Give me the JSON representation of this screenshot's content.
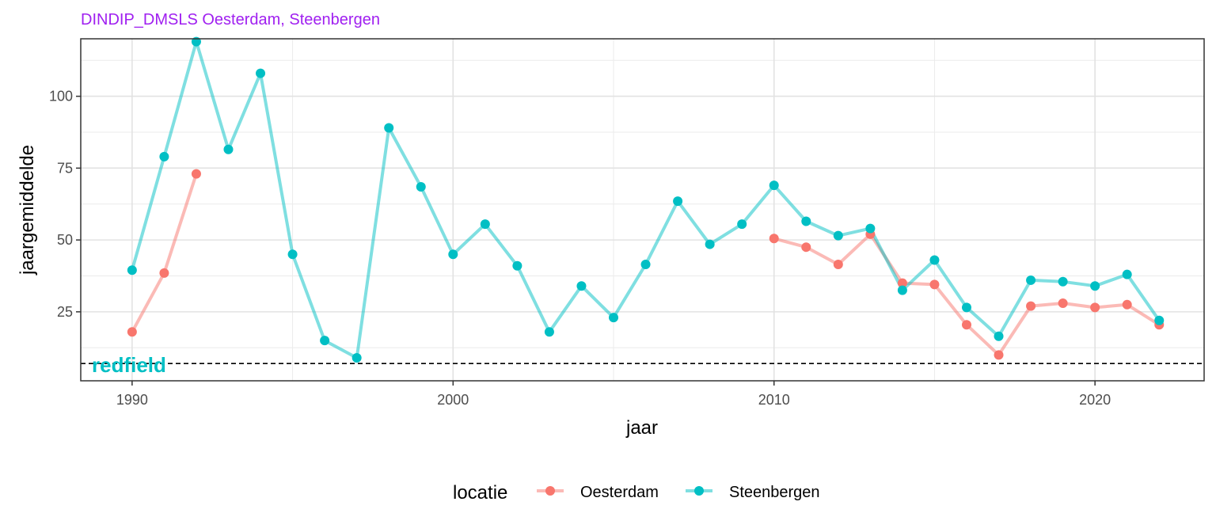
{
  "chart_data": {
    "type": "line",
    "title": "DINDIP_DMSLS Oesterdam, Steenbergen",
    "xlabel": "jaar",
    "ylabel": "jaargemiddelde",
    "xlim": [
      1988.4,
      2023.4
    ],
    "ylim": [
      1,
      120
    ],
    "x_ticks": [
      1990,
      2000,
      2010,
      2020
    ],
    "y_ticks": [
      25,
      50,
      75,
      100
    ],
    "grid": true,
    "legend": {
      "title": "locatie",
      "position": "bottom"
    },
    "reference_line": {
      "label": "redfield",
      "value": 7,
      "style": "dashed",
      "color": "#000000",
      "label_color": "#00bfc4"
    },
    "series": [
      {
        "name": "Oesterdam",
        "color": "#f8766d",
        "points": [
          {
            "x": 1990,
            "y": 18
          },
          {
            "x": 1991,
            "y": 38.5
          },
          {
            "x": 1992,
            "y": 73
          },
          {
            "x": 2010,
            "y": 50.5
          },
          {
            "x": 2011,
            "y": 47.5
          },
          {
            "x": 2012,
            "y": 41.5
          },
          {
            "x": 2013,
            "y": 52
          },
          {
            "x": 2014,
            "y": 35
          },
          {
            "x": 2015,
            "y": 34.5
          },
          {
            "x": 2016,
            "y": 20.5
          },
          {
            "x": 2017,
            "y": 10
          },
          {
            "x": 2018,
            "y": 27
          },
          {
            "x": 2019,
            "y": 28
          },
          {
            "x": 2020,
            "y": 26.5
          },
          {
            "x": 2021,
            "y": 27.5
          },
          {
            "x": 2022,
            "y": 20.5
          }
        ],
        "segments": [
          [
            0,
            2
          ],
          [
            3,
            15
          ]
        ]
      },
      {
        "name": "Steenbergen",
        "color": "#00bfc4",
        "points": [
          {
            "x": 1990,
            "y": 39.5
          },
          {
            "x": 1991,
            "y": 79
          },
          {
            "x": 1992,
            "y": 119
          },
          {
            "x": 1993,
            "y": 81.5
          },
          {
            "x": 1994,
            "y": 108
          },
          {
            "x": 1995,
            "y": 45
          },
          {
            "x": 1996,
            "y": 15
          },
          {
            "x": 1997,
            "y": 9
          },
          {
            "x": 1998,
            "y": 89
          },
          {
            "x": 1999,
            "y": 68.5
          },
          {
            "x": 2000,
            "y": 45
          },
          {
            "x": 2001,
            "y": 55.5
          },
          {
            "x": 2002,
            "y": 41
          },
          {
            "x": 2003,
            "y": 18
          },
          {
            "x": 2004,
            "y": 34
          },
          {
            "x": 2005,
            "y": 23
          },
          {
            "x": 2006,
            "y": 41.5
          },
          {
            "x": 2007,
            "y": 63.5
          },
          {
            "x": 2008,
            "y": 48.5
          },
          {
            "x": 2009,
            "y": 55.5
          },
          {
            "x": 2010,
            "y": 69
          },
          {
            "x": 2011,
            "y": 56.5
          },
          {
            "x": 2012,
            "y": 51.5
          },
          {
            "x": 2013,
            "y": 54
          },
          {
            "x": 2014,
            "y": 32.5
          },
          {
            "x": 2015,
            "y": 43
          },
          {
            "x": 2016,
            "y": 26.5
          },
          {
            "x": 2017,
            "y": 16.5
          },
          {
            "x": 2018,
            "y": 36
          },
          {
            "x": 2019,
            "y": 35.5
          },
          {
            "x": 2020,
            "y": 34
          },
          {
            "x": 2021,
            "y": 38
          },
          {
            "x": 2022,
            "y": 22
          }
        ],
        "segments": [
          [
            0,
            32
          ]
        ]
      }
    ]
  }
}
